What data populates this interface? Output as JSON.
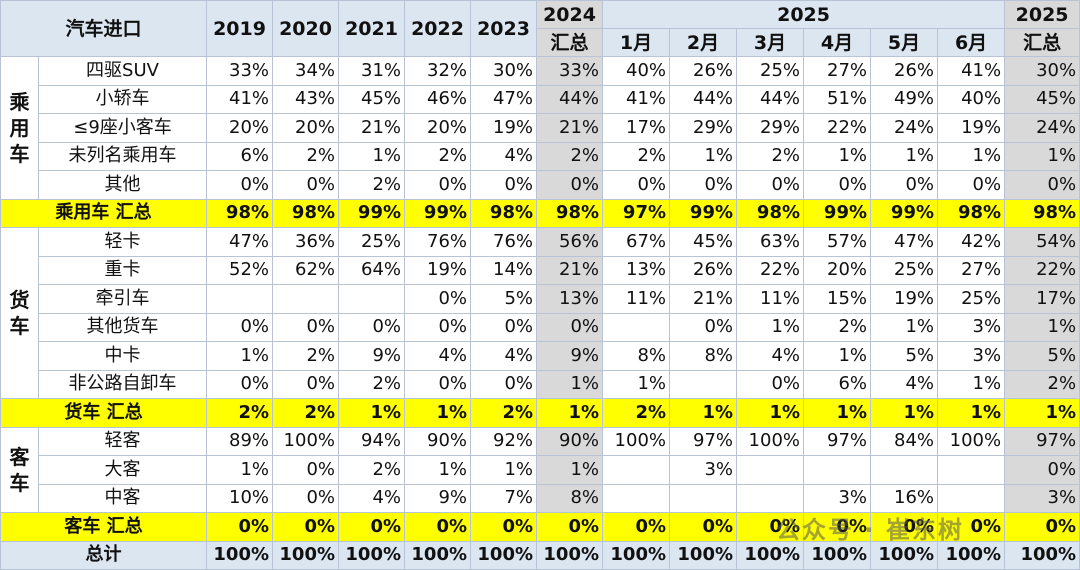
{
  "header": {
    "corner": "汽车进口",
    "years": [
      "2019",
      "2020",
      "2021",
      "2022",
      "2023"
    ],
    "summary_2024": [
      "2024",
      "汇总"
    ],
    "group_2025": "2025",
    "months": [
      "1月",
      "2月",
      "3月",
      "4月",
      "5月",
      "6月"
    ],
    "summary_2025": [
      "2025",
      "汇总"
    ]
  },
  "groups": [
    {
      "label": "乘用车",
      "rows": [
        {
          "name": "四驱SUV",
          "values": [
            "33%",
            "34%",
            "31%",
            "32%",
            "30%",
            "33%",
            "40%",
            "26%",
            "25%",
            "27%",
            "26%",
            "41%",
            "30%"
          ]
        },
        {
          "name": "小轿车",
          "values": [
            "41%",
            "43%",
            "45%",
            "46%",
            "47%",
            "44%",
            "41%",
            "44%",
            "44%",
            "51%",
            "49%",
            "40%",
            "45%"
          ]
        },
        {
          "name": "≤9座小客车",
          "values": [
            "20%",
            "20%",
            "21%",
            "20%",
            "19%",
            "21%",
            "17%",
            "29%",
            "29%",
            "22%",
            "24%",
            "19%",
            "24%"
          ]
        },
        {
          "name": "未列名乘用车",
          "values": [
            "6%",
            "2%",
            "1%",
            "2%",
            "4%",
            "2%",
            "2%",
            "1%",
            "2%",
            "1%",
            "1%",
            "1%",
            "1%"
          ]
        },
        {
          "name": "其他",
          "values": [
            "0%",
            "0%",
            "2%",
            "0%",
            "0%",
            "0%",
            "0%",
            "0%",
            "0%",
            "0%",
            "0%",
            "0%",
            "0%"
          ]
        }
      ],
      "summary": {
        "name": "乘用车 汇总",
        "values": [
          "98%",
          "98%",
          "99%",
          "99%",
          "98%",
          "98%",
          "97%",
          "99%",
          "98%",
          "99%",
          "99%",
          "98%",
          "98%"
        ]
      }
    },
    {
      "label": "货车",
      "rows": [
        {
          "name": "轻卡",
          "values": [
            "47%",
            "36%",
            "25%",
            "76%",
            "76%",
            "56%",
            "67%",
            "45%",
            "63%",
            "57%",
            "47%",
            "42%",
            "54%"
          ]
        },
        {
          "name": "重卡",
          "values": [
            "52%",
            "62%",
            "64%",
            "19%",
            "14%",
            "21%",
            "13%",
            "26%",
            "22%",
            "20%",
            "25%",
            "27%",
            "22%"
          ]
        },
        {
          "name": "牵引车",
          "values": [
            null,
            null,
            null,
            "0%",
            "5%",
            "13%",
            "11%",
            "21%",
            "11%",
            "15%",
            "19%",
            "25%",
            "17%"
          ]
        },
        {
          "name": "其他货车",
          "values": [
            "0%",
            "0%",
            "0%",
            "0%",
            "0%",
            "0%",
            null,
            "0%",
            "1%",
            "2%",
            "1%",
            "3%",
            "1%"
          ]
        },
        {
          "name": "中卡",
          "values": [
            "1%",
            "2%",
            "9%",
            "4%",
            "4%",
            "9%",
            "8%",
            "8%",
            "4%",
            "1%",
            "5%",
            "3%",
            "5%"
          ]
        },
        {
          "name": "非公路自卸车",
          "values": [
            "0%",
            "0%",
            "2%",
            "0%",
            "0%",
            "1%",
            "1%",
            null,
            "0%",
            "6%",
            "4%",
            "1%",
            "2%"
          ]
        }
      ],
      "summary": {
        "name": "货车 汇总",
        "values": [
          "2%",
          "2%",
          "1%",
          "1%",
          "2%",
          "1%",
          "2%",
          "1%",
          "1%",
          "1%",
          "1%",
          "1%",
          "1%"
        ]
      }
    },
    {
      "label": "客车",
      "rows": [
        {
          "name": "轻客",
          "values": [
            "89%",
            "100%",
            "94%",
            "90%",
            "92%",
            "90%",
            "100%",
            "97%",
            "100%",
            "97%",
            "84%",
            "100%",
            "97%"
          ]
        },
        {
          "name": "大客",
          "values": [
            "1%",
            "0%",
            "2%",
            "1%",
            "1%",
            "1%",
            null,
            "3%",
            null,
            null,
            null,
            null,
            "0%"
          ]
        },
        {
          "name": "中客",
          "values": [
            "10%",
            "0%",
            "4%",
            "9%",
            "7%",
            "8%",
            null,
            null,
            null,
            "3%",
            "16%",
            null,
            "3%"
          ]
        }
      ],
      "summary": {
        "name": "客车 汇总",
        "values": [
          "0%",
          "0%",
          "0%",
          "0%",
          "0%",
          "0%",
          "0%",
          "0%",
          "0%",
          "0%",
          "0%",
          "0%",
          "0%"
        ]
      }
    }
  ],
  "total": {
    "name": "总计",
    "values": [
      "100%",
      "100%",
      "100%",
      "100%",
      "100%",
      "100%",
      "100%",
      "100%",
      "100%",
      "100%",
      "100%",
      "100%",
      "100%"
    ]
  },
  "watermark": "公众号 · 崔东树"
}
